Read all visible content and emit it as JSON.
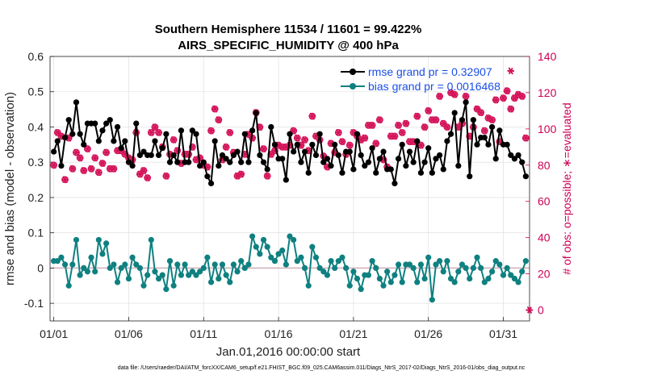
{
  "chart_data": {
    "type": "line",
    "title": "Southern Hemisphere 11534 / 11601 = 99.422%",
    "subtitle": "AIRS_SPECIFIC_HUMIDITY @ 400 hPa",
    "xlabel": "Jan.01,2016 00:00:00 start",
    "ylabel": "rmse and bias (model - observation)",
    "ylabel_right": "# of obs: o=possible; ∗=evaluated",
    "x_ticks": [
      "01/01",
      "01/06",
      "01/11",
      "01/16",
      "01/21",
      "01/26",
      "01/31"
    ],
    "x_tick_days": [
      0,
      5,
      10,
      15,
      20,
      25,
      30
    ],
    "xlim": [
      -0.25,
      31.75
    ],
    "ylim": [
      -0.15,
      0.6
    ],
    "y_ticks": [
      "0.6",
      "0.5",
      "0.4",
      "0.3",
      "0.2",
      "0.1",
      "0",
      "-0.1"
    ],
    "y_tick_values": [
      0.6,
      0.5,
      0.4,
      0.3,
      0.2,
      0.1,
      0,
      -0.1
    ],
    "ylim_right": [
      -6,
      140
    ],
    "y_ticks_right": [
      "140",
      "120",
      "100",
      "80",
      "60",
      "40",
      "20",
      "0"
    ],
    "y_tick_values_right": [
      140,
      120,
      100,
      80,
      60,
      40,
      20,
      0
    ],
    "grid": true,
    "legend_position": "top-right",
    "footnote": "data file: /Users/raeder/DAI/ATM_forcXX/CAM6_setup/f.e21.FHIST_BGC.f09_025.CAM6assim.011/Diags_NtrS_2017-02/Diags_NtrS_2016-01/obs_diag_output.nc",
    "series": [
      {
        "name": "rmse grand pr = 0.32907",
        "color": "#000000",
        "marker": "filled-circle",
        "axis": "left",
        "x": [
          0.0,
          0.25,
          0.5,
          0.75,
          1.0,
          1.25,
          1.5,
          1.75,
          2.0,
          2.25,
          2.5,
          2.75,
          3.0,
          3.25,
          3.5,
          3.75,
          4.0,
          4.25,
          4.5,
          4.75,
          5.0,
          5.25,
          5.5,
          5.75,
          6.0,
          6.25,
          6.5,
          6.75,
          7.0,
          7.25,
          7.5,
          7.75,
          8.0,
          8.25,
          8.5,
          8.75,
          9.0,
          9.25,
          9.5,
          9.75,
          10.0,
          10.25,
          10.5,
          10.75,
          11.0,
          11.25,
          11.5,
          11.75,
          12.0,
          12.25,
          12.5,
          12.75,
          13.0,
          13.25,
          13.5,
          13.75,
          14.0,
          14.25,
          14.5,
          14.75,
          15.0,
          15.25,
          15.5,
          15.75,
          16.0,
          16.25,
          16.5,
          16.75,
          17.0,
          17.25,
          17.5,
          17.75,
          18.0,
          18.25,
          18.5,
          18.75,
          19.0,
          19.25,
          19.5,
          19.75,
          20.0,
          20.25,
          20.5,
          20.75,
          21.0,
          21.25,
          21.5,
          21.75,
          22.0,
          22.25,
          22.5,
          22.75,
          23.0,
          23.25,
          23.5,
          23.75,
          24.0,
          24.25,
          24.5,
          24.75,
          25.0,
          25.25,
          25.5,
          25.75,
          26.0,
          26.25,
          26.5,
          26.75,
          27.0,
          27.25,
          27.5,
          27.75,
          28.0,
          28.25,
          28.5,
          28.75,
          29.0,
          29.25,
          29.5,
          29.75,
          30.0,
          30.25,
          30.5,
          30.75,
          31.0,
          31.25,
          31.5
        ],
        "values": [
          0.33,
          0.36,
          0.29,
          0.37,
          0.42,
          0.38,
          0.47,
          0.38,
          0.35,
          0.41,
          0.41,
          0.41,
          0.36,
          0.39,
          0.41,
          0.42,
          0.36,
          0.4,
          0.34,
          0.36,
          0.3,
          0.29,
          0.41,
          0.32,
          0.33,
          0.32,
          0.32,
          0.36,
          0.32,
          0.34,
          0.38,
          0.3,
          0.32,
          0.3,
          0.39,
          0.3,
          0.3,
          0.39,
          0.38,
          0.29,
          0.3,
          0.26,
          0.24,
          0.36,
          0.29,
          0.32,
          0.31,
          0.3,
          0.32,
          0.33,
          0.3,
          0.38,
          0.3,
          0.39,
          0.44,
          0.32,
          0.3,
          0.28,
          0.4,
          0.35,
          0.31,
          0.31,
          0.25,
          0.38,
          0.33,
          0.35,
          0.3,
          0.33,
          0.27,
          0.35,
          0.32,
          0.38,
          0.3,
          0.31,
          0.29,
          0.35,
          0.32,
          0.27,
          0.33,
          0.33,
          0.28,
          0.38,
          0.32,
          0.29,
          0.3,
          0.34,
          0.27,
          0.31,
          0.33,
          0.28,
          0.28,
          0.24,
          0.31,
          0.35,
          0.29,
          0.33,
          0.3,
          0.36,
          0.27,
          0.3,
          0.34,
          0.27,
          0.31,
          0.32,
          0.28,
          0.36,
          0.38,
          0.44,
          0.29,
          0.42,
          0.47,
          0.26,
          0.42,
          0.35,
          0.37,
          0.37,
          0.35,
          0.4,
          0.31,
          0.39,
          0.35,
          0.35,
          0.32,
          0.31,
          0.32,
          0.3,
          0.26
        ]
      },
      {
        "name": "bias grand pr = 0.0016468",
        "color": "#0f8080",
        "marker": "filled-circle",
        "axis": "left",
        "x": [
          0.0,
          0.25,
          0.5,
          0.75,
          1.0,
          1.25,
          1.5,
          1.75,
          2.0,
          2.25,
          2.5,
          2.75,
          3.0,
          3.25,
          3.5,
          3.75,
          4.0,
          4.25,
          4.5,
          4.75,
          5.0,
          5.25,
          5.5,
          5.75,
          6.0,
          6.25,
          6.5,
          6.75,
          7.0,
          7.25,
          7.5,
          7.75,
          8.0,
          8.25,
          8.5,
          8.75,
          9.0,
          9.25,
          9.5,
          9.75,
          10.0,
          10.25,
          10.5,
          10.75,
          11.0,
          11.25,
          11.5,
          11.75,
          12.0,
          12.25,
          12.5,
          12.75,
          13.0,
          13.25,
          13.5,
          13.75,
          14.0,
          14.25,
          14.5,
          14.75,
          15.0,
          15.25,
          15.5,
          15.75,
          16.0,
          16.25,
          16.5,
          16.75,
          17.0,
          17.25,
          17.5,
          17.75,
          18.0,
          18.25,
          18.5,
          18.75,
          19.0,
          19.25,
          19.5,
          19.75,
          20.0,
          20.25,
          20.5,
          20.75,
          21.0,
          21.25,
          21.5,
          21.75,
          22.0,
          22.25,
          22.5,
          22.75,
          23.0,
          23.25,
          23.5,
          23.75,
          24.0,
          24.25,
          24.5,
          24.75,
          25.0,
          25.25,
          25.5,
          25.75,
          26.0,
          26.25,
          26.5,
          26.75,
          27.0,
          27.25,
          27.5,
          27.75,
          28.0,
          28.25,
          28.5,
          28.75,
          29.0,
          29.25,
          29.5,
          29.75,
          30.0,
          30.25,
          30.5,
          30.75,
          31.0,
          31.25,
          31.5
        ],
        "values": [
          0.02,
          0.02,
          0.03,
          0.01,
          -0.05,
          0.01,
          0.08,
          -0.02,
          0.0,
          -0.01,
          0.03,
          -0.01,
          0.08,
          0.04,
          0.07,
          0.0,
          0.01,
          -0.04,
          0.0,
          0.01,
          -0.03,
          0.03,
          0.01,
          0.0,
          -0.05,
          -0.02,
          0.08,
          -0.01,
          -0.03,
          -0.02,
          -0.06,
          0.02,
          -0.05,
          0.01,
          -0.02,
          0.01,
          -0.02,
          -0.01,
          -0.02,
          -0.01,
          0.0,
          0.03,
          -0.04,
          0.01,
          -0.03,
          0.01,
          -0.02,
          -0.04,
          0.01,
          -0.01,
          0.02,
          0.0,
          0.01,
          0.09,
          0.06,
          0.04,
          0.08,
          0.06,
          0.03,
          0.02,
          0.04,
          0.05,
          0.01,
          0.09,
          0.08,
          0.02,
          0.03,
          0.0,
          -0.05,
          0.06,
          0.03,
          0.0,
          -0.01,
          -0.02,
          0.02,
          0.0,
          0.02,
          0.03,
          0.0,
          -0.05,
          -0.01,
          -0.03,
          -0.06,
          -0.02,
          -0.02,
          0.02,
          0.0,
          -0.03,
          -0.05,
          -0.01,
          -0.04,
          -0.02,
          0.01,
          -0.04,
          0.01,
          0.01,
          0.0,
          -0.04,
          0.01,
          -0.03,
          0.03,
          -0.09,
          0.01,
          0.02,
          -0.01,
          0.02,
          -0.03,
          -0.04,
          -0.01,
          0.01,
          0.0,
          -0.03,
          0.0,
          0.03,
          0.0,
          -0.04,
          -0.03,
          -0.01,
          0.02,
          0.01,
          -0.02,
          0.0,
          -0.02,
          -0.03,
          -0.04,
          -0.01,
          0.02
        ]
      },
      {
        "name": "possible",
        "color": "#d4145a",
        "marker": "open-circle",
        "axis": "right",
        "x": [
          0.0,
          0.25,
          0.5,
          0.75,
          1.0,
          1.25,
          1.5,
          1.75,
          2.0,
          2.25,
          2.5,
          2.75,
          3.0,
          3.25,
          3.5,
          3.75,
          4.0,
          4.25,
          4.5,
          4.75,
          5.0,
          5.25,
          5.5,
          5.75,
          6.0,
          6.25,
          6.5,
          6.75,
          7.0,
          7.25,
          7.5,
          7.75,
          8.0,
          8.25,
          8.5,
          8.75,
          9.0,
          9.25,
          9.5,
          9.75,
          10.0,
          10.25,
          10.5,
          10.75,
          11.0,
          11.25,
          11.5,
          11.75,
          12.0,
          12.25,
          12.5,
          12.75,
          13.0,
          13.25,
          13.5,
          13.75,
          14.0,
          14.25,
          14.5,
          14.75,
          15.0,
          15.25,
          15.5,
          15.75,
          16.0,
          16.25,
          16.5,
          16.75,
          17.0,
          17.25,
          17.5,
          17.75,
          18.0,
          18.25,
          18.5,
          18.75,
          19.0,
          19.25,
          19.5,
          19.75,
          20.0,
          20.25,
          20.5,
          20.75,
          21.0,
          21.25,
          21.5,
          21.75,
          22.0,
          22.25,
          22.5,
          22.75,
          23.0,
          23.25,
          23.5,
          23.75,
          24.0,
          24.25,
          24.5,
          24.75,
          25.0,
          25.25,
          25.5,
          25.75,
          26.0,
          26.25,
          26.5,
          26.75,
          27.0,
          27.25,
          27.5,
          27.75,
          28.0,
          28.25,
          28.5,
          28.75,
          29.0,
          29.25,
          29.5,
          29.75,
          30.0,
          30.25,
          30.5,
          30.75,
          31.0,
          31.25,
          31.5
        ],
        "values": [
          80,
          98,
          96,
          72,
          95,
          78,
          87,
          84,
          77,
          89,
          78,
          84,
          76,
          81,
          87,
          78,
          78,
          88,
          88,
          86,
          84,
          83,
          98,
          75,
          77,
          73,
          98,
          101,
          98,
          90,
          74,
          86,
          94,
          88,
          81,
          86,
          86,
          90,
          83,
          84,
          80,
          79,
          99,
          111,
          105,
          83,
          90,
          98,
          87,
          74,
          75,
          86,
          97,
          95,
          109,
          101,
          89,
          74,
          86,
          88,
          91,
          90,
          90,
          91,
          99,
          95,
          91,
          94,
          88,
          107,
          96,
          94,
          85,
          79,
          92,
          87,
          98,
          93,
          86,
          91,
          98,
          96,
          94,
          95,
          102,
          102,
          92,
          105,
          83,
          79,
          96,
          96,
          102,
          98,
          103,
          93,
          93,
          107,
          91,
          101,
          110,
          105,
          105,
          118,
          103,
          101,
          120,
          119,
          101,
          103,
          118,
          96,
          101,
          111,
          109,
          99,
          106,
          105,
          116,
          93,
          117,
          121,
          111,
          117,
          119,
          118,
          95
        ]
      },
      {
        "name": "evaluated",
        "color": "#d4145a",
        "marker": "asterisk",
        "axis": "right",
        "x": [
          0.0,
          0.25,
          0.5,
          0.75,
          1.0,
          1.25,
          1.5,
          1.75,
          2.0,
          2.25,
          2.5,
          2.75,
          3.0,
          3.25,
          3.5,
          3.75,
          4.0,
          4.25,
          4.5,
          4.75,
          5.0,
          5.25,
          5.5,
          5.75,
          6.0,
          6.25,
          6.5,
          6.75,
          7.0,
          7.25,
          7.5,
          7.75,
          8.0,
          8.25,
          8.5,
          8.75,
          9.0,
          9.25,
          9.5,
          9.75,
          10.0,
          10.25,
          10.5,
          10.75,
          11.0,
          11.25,
          11.5,
          11.75,
          12.0,
          12.25,
          12.5,
          12.75,
          13.0,
          13.25,
          13.5,
          13.75,
          14.0,
          14.25,
          14.5,
          14.75,
          15.0,
          15.25,
          15.5,
          15.75,
          16.0,
          16.25,
          16.5,
          16.75,
          17.0,
          17.25,
          17.5,
          17.75,
          18.0,
          18.25,
          18.5,
          18.75,
          19.0,
          19.25,
          19.5,
          19.75,
          20.0,
          20.25,
          20.5,
          20.75,
          21.0,
          21.25,
          21.5,
          21.75,
          22.0,
          22.25,
          22.5,
          22.75,
          23.0,
          23.25,
          23.5,
          23.75,
          24.0,
          24.25,
          24.5,
          24.75,
          25.0,
          25.25,
          25.5,
          25.75,
          26.0,
          26.25,
          26.5,
          26.75,
          27.0,
          27.25,
          27.5,
          27.75,
          28.0,
          28.25,
          28.5,
          28.75,
          29.0,
          29.25,
          29.5,
          29.75,
          30.0,
          30.25,
          30.5,
          30.75,
          31.0,
          31.25,
          31.5,
          31.75
        ],
        "values": [
          80,
          98,
          96,
          72,
          95,
          78,
          87,
          84,
          77,
          89,
          78,
          84,
          76,
          81,
          87,
          78,
          78,
          88,
          88,
          86,
          84,
          83,
          98,
          75,
          77,
          73,
          98,
          101,
          98,
          90,
          74,
          86,
          94,
          88,
          81,
          86,
          86,
          90,
          83,
          84,
          80,
          79,
          99,
          111,
          105,
          83,
          90,
          98,
          87,
          74,
          75,
          86,
          97,
          95,
          109,
          101,
          89,
          74,
          86,
          88,
          91,
          90,
          90,
          91,
          99,
          95,
          91,
          94,
          88,
          107,
          96,
          94,
          85,
          79,
          92,
          87,
          98,
          93,
          86,
          91,
          98,
          96,
          94,
          95,
          102,
          102,
          92,
          105,
          83,
          79,
          96,
          96,
          102,
          98,
          103,
          93,
          93,
          107,
          91,
          101,
          110,
          105,
          105,
          118,
          103,
          101,
          120,
          119,
          101,
          103,
          118,
          96,
          101,
          111,
          109,
          99,
          106,
          105,
          116,
          93,
          117,
          121,
          111,
          117,
          119,
          118,
          95,
          0
        ]
      }
    ],
    "extra_markers": [
      {
        "series": "evaluated",
        "x": 30.5,
        "value": 132,
        "marker": "asterisk"
      }
    ]
  }
}
